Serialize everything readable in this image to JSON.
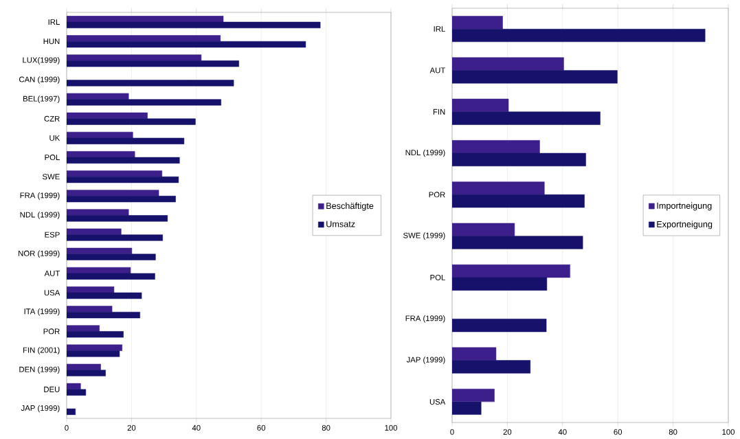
{
  "chart_data": [
    {
      "type": "bar",
      "orientation": "horizontal",
      "categories": [
        "IRL",
        "HUN",
        "LUX(1999)",
        "CAN (1999)",
        "BEL(1997)",
        "CZR",
        "UK",
        "POL",
        "SWE",
        "FRA (1999)",
        "NDL (1999)",
        "ESP",
        "NOR (1999)",
        "AUT",
        "USA",
        "ITA (1999)",
        "POR",
        "FIN (2001)",
        "DEN (1999)",
        "DEU",
        "JAP (1999)"
      ],
      "series": [
        {
          "name": "Beschäftigte",
          "color": "#3d1f8c",
          "values": [
            48.3,
            47.4,
            41.5,
            null,
            19.1,
            24.9,
            20.4,
            21.0,
            29.4,
            28.4,
            19.1,
            16.8,
            20.1,
            19.7,
            14.6,
            14.0,
            10.1,
            17.1,
            10.5,
            4.3,
            null
          ]
        },
        {
          "name": "Umsatz",
          "color": "#16126c",
          "values": [
            78.2,
            73.7,
            53.1,
            51.5,
            47.6,
            39.7,
            36.2,
            34.8,
            34.5,
            33.6,
            31.1,
            29.6,
            27.4,
            27.2,
            23.1,
            22.6,
            17.5,
            16.3,
            12.0,
            5.9,
            2.7
          ]
        }
      ],
      "xlim": [
        0,
        100
      ],
      "xticks": [
        0,
        20,
        40,
        60,
        80,
        100
      ],
      "grid": "x",
      "legend": "right"
    },
    {
      "type": "bar",
      "orientation": "horizontal",
      "categories": [
        "IRL",
        "AUT",
        "FIN",
        "NDL (1999)",
        "POR",
        "SWE (1999)",
        "POL",
        "FRA (1999)",
        "JAP (1999)",
        "USA"
      ],
      "series": [
        {
          "name": "Importneigung",
          "color": "#3d1f8c",
          "values": [
            18.3,
            40.4,
            20.4,
            31.7,
            33.4,
            22.6,
            42.7,
            null,
            15.9,
            15.3
          ]
        },
        {
          "name": "Exportneigung",
          "color": "#16126c",
          "values": [
            91.6,
            59.8,
            53.6,
            48.4,
            47.9,
            47.3,
            34.3,
            34.1,
            28.3,
            10.5
          ]
        }
      ],
      "xlim": [
        0,
        100
      ],
      "xticks": [
        0,
        20,
        40,
        60,
        80,
        100
      ],
      "grid": "x",
      "legend": "right"
    }
  ]
}
